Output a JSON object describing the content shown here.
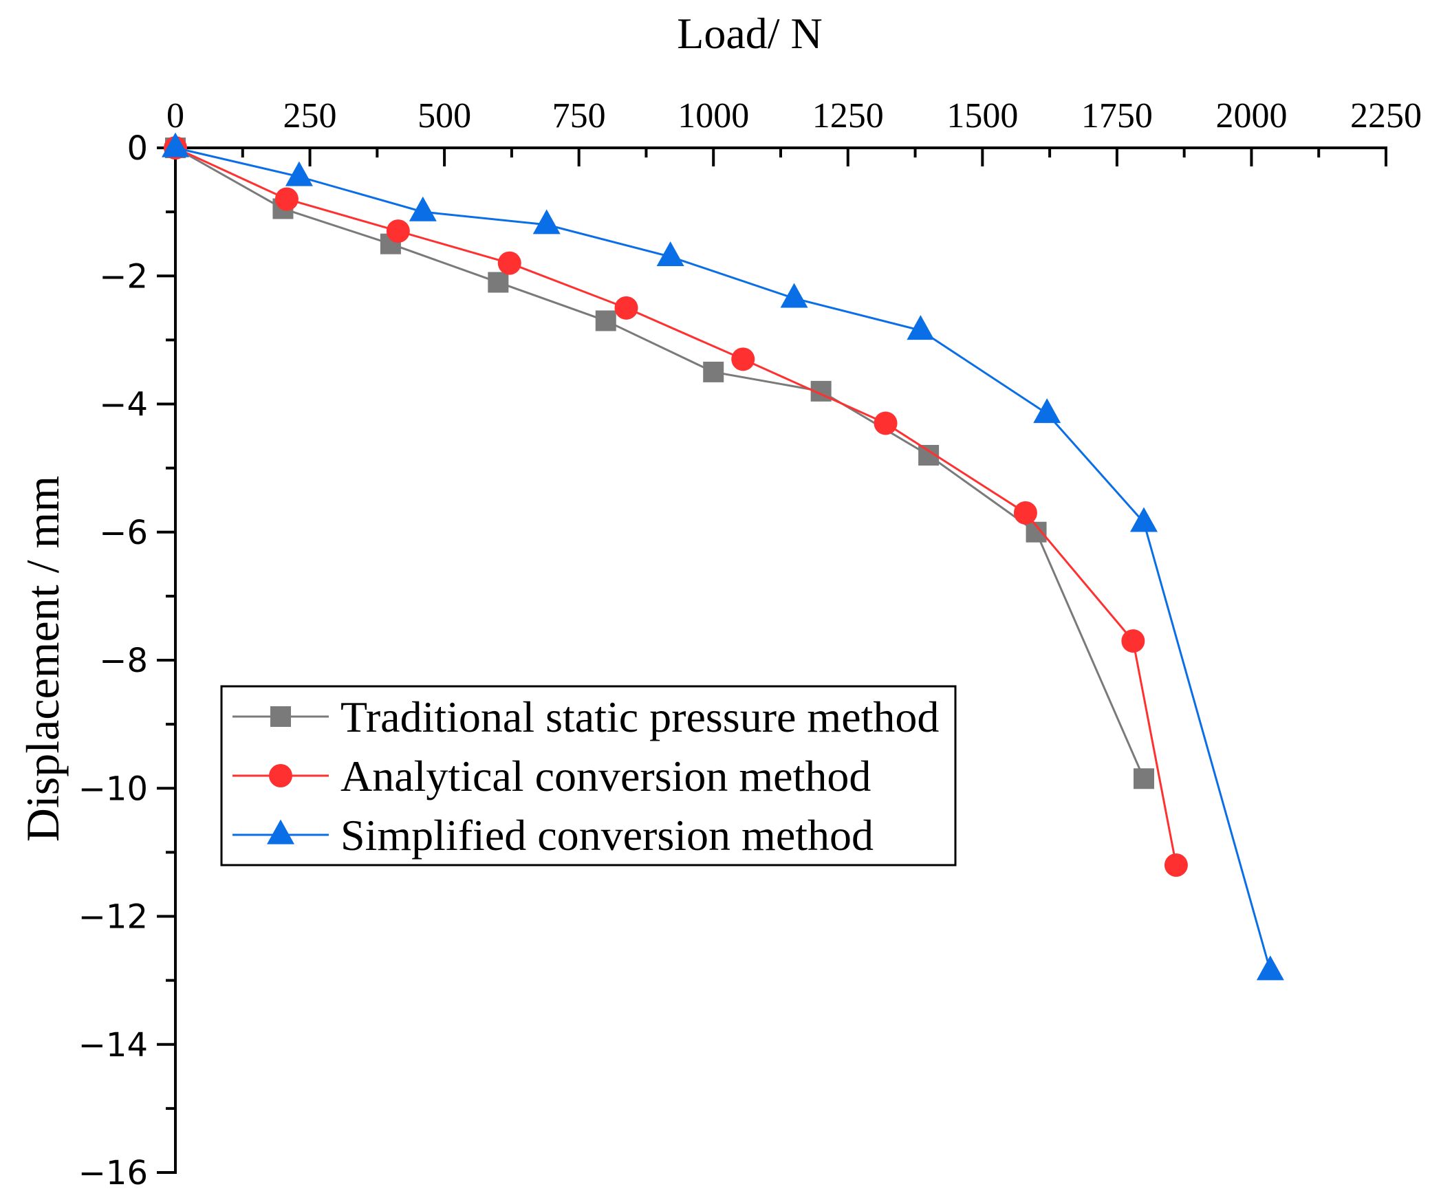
{
  "chart_data": {
    "type": "line",
    "xlabel": "Load/ N",
    "ylabel": "Displacement / mm",
    "xlim": [
      0,
      2250
    ],
    "ylim": [
      -16,
      0
    ],
    "x_ticks": [
      "0",
      "250",
      "500",
      "750",
      "1000",
      "1250",
      "1500",
      "1750",
      "2000",
      "2250"
    ],
    "y_ticks": [
      "0",
      "−2",
      "−4",
      "−6",
      "−8",
      "−10",
      "−12",
      "−14",
      "−16"
    ],
    "x_axis_position": "top",
    "grid": false,
    "legend_position": "lower-left",
    "series": [
      {
        "name": "Traditional static pressure method",
        "color": "#7a7a7a",
        "marker": "square",
        "x": [
          0,
          200,
          400,
          600,
          800,
          1000,
          1200,
          1400,
          1600,
          1800
        ],
        "y": [
          0,
          -0.95,
          -1.5,
          -2.1,
          -2.7,
          -3.5,
          -3.8,
          -4.8,
          -6.0,
          -9.85
        ]
      },
      {
        "name": "Analytical conversion method",
        "color": "#ff3030",
        "marker": "circle",
        "x": [
          0,
          207,
          414,
          621,
          838,
          1055,
          1320,
          1580,
          1780,
          1860
        ],
        "y": [
          0,
          -0.8,
          -1.3,
          -1.8,
          -2.5,
          -3.3,
          -4.3,
          -5.7,
          -7.7,
          -11.2
        ]
      },
      {
        "name": "Simplified conversion method",
        "color": "#0a6ee6",
        "marker": "triangle",
        "x": [
          0,
          230,
          460,
          690,
          920,
          1150,
          1385,
          1620,
          1800,
          2035
        ],
        "y": [
          0,
          -0.45,
          -1.0,
          -1.2,
          -1.7,
          -2.35,
          -2.85,
          -4.15,
          -5.85,
          -12.85
        ]
      }
    ]
  }
}
